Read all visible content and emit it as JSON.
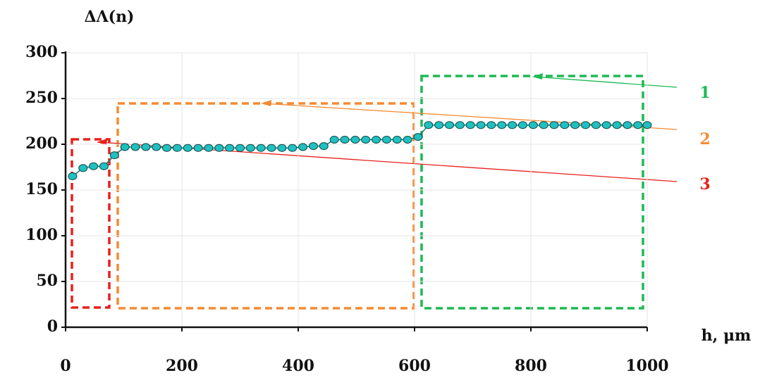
{
  "chart_data": {
    "type": "line",
    "y_label": "ΔΛ(n)",
    "x_label": "h, μm",
    "x": [
      12,
      30,
      48,
      66,
      84,
      102,
      120,
      138,
      156,
      174,
      192,
      210,
      228,
      246,
      264,
      282,
      300,
      318,
      336,
      354,
      372,
      390,
      408,
      426,
      444,
      462,
      480,
      498,
      516,
      534,
      552,
      570,
      588,
      606,
      624,
      642,
      660,
      678,
      696,
      714,
      732,
      750,
      768,
      786,
      804,
      822,
      840,
      858,
      876,
      894,
      912,
      930,
      948,
      966,
      984,
      1000
    ],
    "series": [
      {
        "color": "#20c0c0",
        "values": [
          165,
          174,
          176,
          176,
          188,
          197,
          197,
          197,
          197,
          196,
          196,
          196,
          196,
          196,
          196,
          196,
          196,
          196,
          196,
          196,
          196,
          196,
          197,
          198,
          198,
          205,
          205,
          205,
          205,
          205,
          205,
          205,
          205,
          208,
          221,
          221,
          221,
          221,
          221,
          221,
          221,
          221,
          221,
          221,
          221,
          221,
          221,
          221,
          221,
          221,
          221,
          221,
          221,
          221,
          221,
          221
        ]
      }
    ],
    "xlim": [
      0,
      1000
    ],
    "xticks": [
      0,
      200,
      400,
      600,
      800,
      1000
    ],
    "ylim": [
      0,
      300
    ],
    "yticks": [
      0,
      50,
      100,
      150,
      200,
      250,
      300
    ],
    "grid": true,
    "annotations": [
      {
        "text": "1",
        "color": "#1db954"
      },
      {
        "text": "2",
        "color": "#f58a32"
      },
      {
        "text": "3",
        "color": "#e8201c"
      }
    ]
  }
}
